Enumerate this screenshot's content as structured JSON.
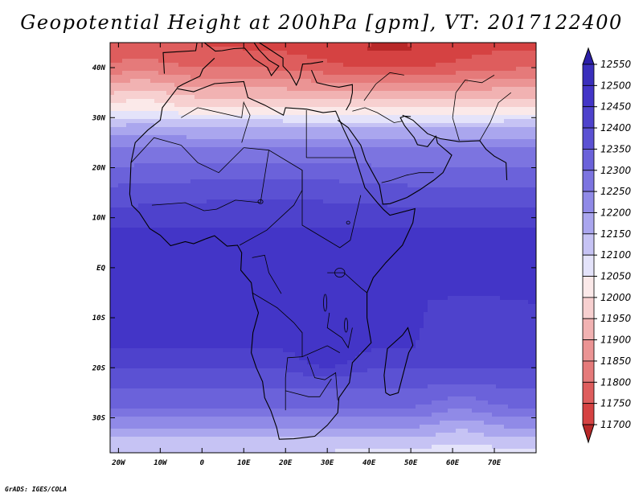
{
  "title": "Geopotential Height at 200hPa [gpm], VT: 2017122400",
  "credit": "GrADS: IGES/COLA",
  "map": {
    "lon_range": [
      -22,
      80
    ],
    "lat_range": [
      -37,
      45
    ],
    "lon_ticks": [
      {
        "value": -20,
        "label": "20W"
      },
      {
        "value": -10,
        "label": "10W"
      },
      {
        "value": 0,
        "label": "0"
      },
      {
        "value": 10,
        "label": "10E"
      },
      {
        "value": 20,
        "label": "20E"
      },
      {
        "value": 30,
        "label": "30E"
      },
      {
        "value": 40,
        "label": "40E"
      },
      {
        "value": 50,
        "label": "50E"
      },
      {
        "value": 60,
        "label": "60E"
      },
      {
        "value": 70,
        "label": "70E"
      }
    ],
    "lat_ticks": [
      {
        "value": 40,
        "label": "40N"
      },
      {
        "value": 30,
        "label": "30N"
      },
      {
        "value": 20,
        "label": "20N"
      },
      {
        "value": 10,
        "label": "10N"
      },
      {
        "value": 0,
        "label": "EQ"
      },
      {
        "value": -10,
        "label": "10S"
      },
      {
        "value": -20,
        "label": "20S"
      },
      {
        "value": -30,
        "label": "30S"
      }
    ]
  },
  "colorbar": {
    "levels": [
      "12550",
      "12500",
      "12450",
      "12400",
      "12350",
      "12300",
      "12250",
      "12200",
      "12150",
      "12100",
      "12050",
      "12000",
      "11950",
      "11900",
      "11850",
      "11800",
      "11750",
      "11700"
    ],
    "colors": [
      "#2b1fa8",
      "#3a2fbc",
      "#4335c7",
      "#4e42cc",
      "#5b51d3",
      "#6b62da",
      "#7c74e0",
      "#908ae7",
      "#aaa6ee",
      "#c6c3f4",
      "#e4e3fa",
      "#fbe9e9",
      "#f7d0d0",
      "#f1b2b2",
      "#eb9494",
      "#e57a7a",
      "#de5d5d",
      "#d54242",
      "#b82828"
    ]
  },
  "chart_data": {
    "type": "heatmap",
    "title": "Geopotential Height at 200hPa [gpm], VT: 2017122400",
    "variable": "Geopotential Height at 200hPa",
    "units": "gpm",
    "valid_time": "2017122400",
    "color_scale_min": 11700,
    "color_scale_max": 12550,
    "color_scale_step": 50,
    "colormap": "red (low) to white to blue (high)",
    "lon_range": [
      -22,
      80
    ],
    "lat_range": [
      -37,
      45
    ],
    "latitude_profile": {
      "lat": [
        44,
        40,
        36,
        32,
        28,
        24,
        20,
        16,
        12,
        8,
        0,
        -10,
        -16,
        -20,
        -24,
        -28,
        -32,
        -36
      ],
      "approx_height_gpm": [
        11750,
        11800,
        11900,
        12000,
        12150,
        12250,
        12300,
        12350,
        12400,
        12450,
        12450,
        12450,
        12450,
        12400,
        12350,
        12300,
        12200,
        12100
      ]
    },
    "features": [
      {
        "label": "minimum",
        "lat": 42,
        "lon": 45,
        "approx_height_gpm": 11700
      },
      {
        "label": "maximum",
        "lat": -18,
        "lon": 30,
        "approx_height_gpm": 12500
      }
    ]
  }
}
